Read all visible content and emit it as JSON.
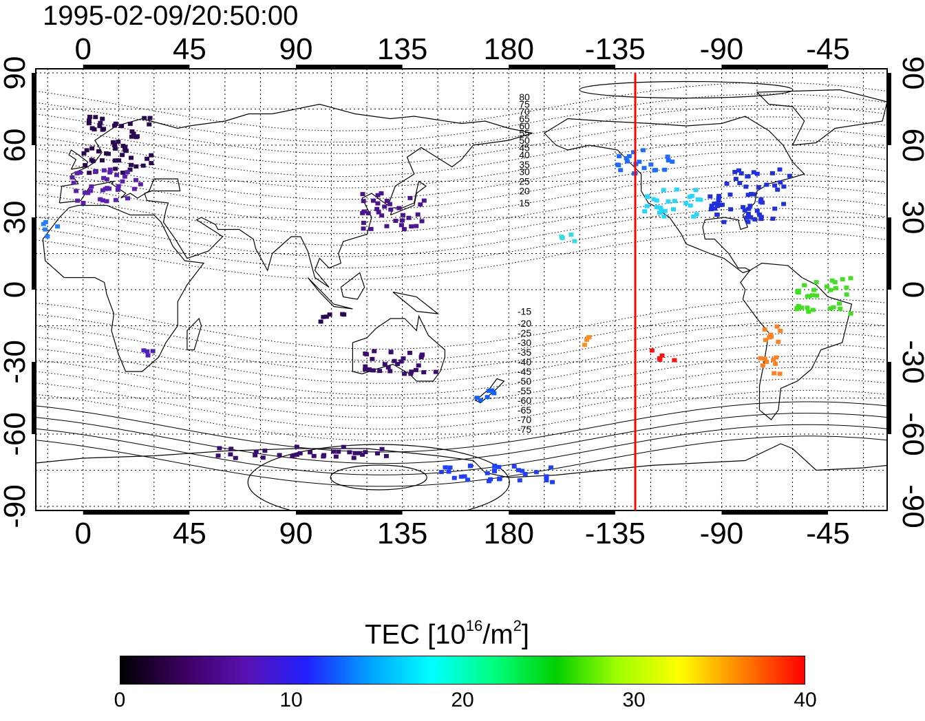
{
  "timestamp": "1995-02-09/20:50:00",
  "top_ticks": [
    "0",
    "45",
    "90",
    "135",
    "180",
    "-135",
    "-90",
    "-45"
  ],
  "bottom_ticks": [
    "0",
    "45",
    "90",
    "135",
    "180",
    "-135",
    "-90",
    "-45"
  ],
  "left_ticks": [
    "90",
    "60",
    "30",
    "0",
    "-30",
    "-60",
    "-90"
  ],
  "right_ticks": [
    "90",
    "60",
    "30",
    "0",
    "-30",
    "-60",
    "-90"
  ],
  "contour_labels": [
    "80",
    "75",
    "70",
    "65",
    "60",
    "55",
    "50",
    "45",
    "40",
    "35",
    "30",
    "25",
    "20",
    "15",
    "-15",
    "-20",
    "-25",
    "-30",
    "-35",
    "-40",
    "-45",
    "-50",
    "-55",
    "-60",
    "-65",
    "-70",
    "-75"
  ],
  "colorbar": {
    "title": "TEC  [10",
    "title_sup1": "16",
    "title_mid": "/m",
    "title_sup2": "2",
    "title_end": "]",
    "min": 0,
    "max": 40,
    "tick_labels": [
      "0",
      "10",
      "20",
      "30",
      "40"
    ],
    "colors": [
      "#000000",
      "#3a0060",
      "#5a10b0",
      "#2020ff",
      "#00a0ff",
      "#00ffff",
      "#00ff80",
      "#00d000",
      "#a0ff00",
      "#ffff00",
      "#ff8000",
      "#ff0000"
    ]
  },
  "terminator_line": {
    "longitude": -133,
    "color": "#ff0000"
  },
  "observation_clusters": [
    {
      "region": "Europe",
      "tec": 3,
      "color": "#2a0850"
    },
    {
      "region": "Europe-south",
      "tec": 6,
      "color": "#5a1fb0"
    },
    {
      "region": "North-America-west",
      "tec": 11,
      "color": "#1e6cff"
    },
    {
      "region": "North-America-southwest",
      "tec": 15,
      "color": "#22d8ff"
    },
    {
      "region": "North-America-east",
      "tec": 9,
      "color": "#2030e0"
    },
    {
      "region": "East-Asia",
      "tec": 5,
      "color": "#4a1490"
    },
    {
      "region": "Hawaii",
      "tec": 16,
      "color": "#30e0e0"
    },
    {
      "region": "South-America",
      "tec": 34,
      "color": "#ff8020"
    },
    {
      "region": "Pacific-islands",
      "tec": 32,
      "color": "#ff9020"
    },
    {
      "region": "Pacific-south",
      "tec": 38,
      "color": "#ff1010"
    },
    {
      "region": "Brazil",
      "tec": 26,
      "color": "#40e020"
    },
    {
      "region": "Australia",
      "tec": 4,
      "color": "#3a0c70"
    },
    {
      "region": "Indonesia",
      "tec": 3,
      "color": "#2a0850"
    },
    {
      "region": "New-Zealand",
      "tec": 10,
      "color": "#1060ff"
    },
    {
      "region": "Antarctica-Indian",
      "tec": 4,
      "color": "#3a0c70"
    },
    {
      "region": "Antarctica-Pacific",
      "tec": 9,
      "color": "#2040ff"
    },
    {
      "region": "South-Africa",
      "tec": 7,
      "color": "#5020c0"
    },
    {
      "region": "West-Africa",
      "tec": 12,
      "color": "#2080ff"
    }
  ]
}
